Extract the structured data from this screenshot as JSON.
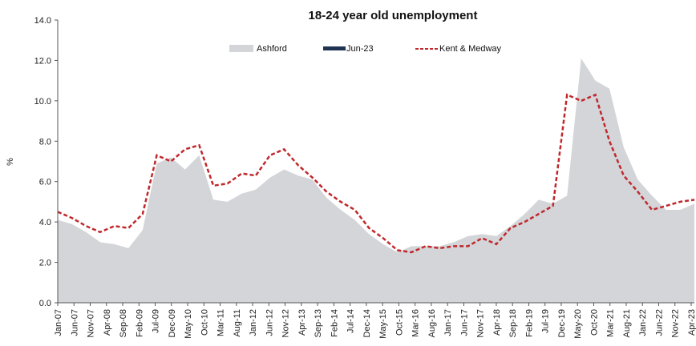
{
  "chart_data": {
    "type": "area",
    "title": "18-24 year old unemployment",
    "xlabel": "",
    "ylabel": "%",
    "ylim": [
      0,
      14
    ],
    "yticks": [
      "0.0",
      "2.0",
      "4.0",
      "6.0",
      "8.0",
      "10.0",
      "12.0",
      "14.0"
    ],
    "xticks": [
      "Jan-07",
      "Jun-07",
      "Nov-07",
      "Apr-08",
      "Sep-08",
      "Feb-09",
      "Jul-09",
      "Dec-09",
      "May-10",
      "Oct-10",
      "Mar-11",
      "Aug-11",
      "Jan-12",
      "Jun-12",
      "Nov-12",
      "Apr-13",
      "Sep-13",
      "Feb-14",
      "Jul-14",
      "Dec-14",
      "May-15",
      "Oct-15",
      "Mar-16",
      "Aug-16",
      "Jan-17",
      "Jun-17",
      "Nov-17",
      "Apr-18",
      "Sep-18",
      "Feb-19",
      "Jul-19",
      "Dec-19",
      "May-20",
      "Oct-20",
      "Mar-21",
      "Aug-21",
      "Jan-22",
      "Jun-22",
      "Nov-22",
      "Apr-23"
    ],
    "grid": false,
    "legend": "top",
    "series": [
      {
        "name": "Ashford",
        "style": "area",
        "color": "#d3d5d9",
        "values": [
          4.1,
          3.9,
          3.5,
          3.0,
          2.9,
          2.7,
          3.6,
          6.9,
          7.2,
          6.6,
          7.3,
          5.1,
          5.0,
          5.4,
          5.6,
          6.2,
          6.6,
          6.3,
          6.1,
          5.2,
          4.6,
          4.1,
          3.4,
          2.9,
          2.5,
          2.8,
          2.8,
          2.8,
          3.0,
          3.3,
          3.4,
          3.3,
          3.8,
          4.4,
          5.1,
          4.9,
          5.3,
          12.1,
          11.0,
          10.6,
          7.7,
          6.1,
          5.3,
          4.6,
          4.6,
          4.9
        ]
      },
      {
        "name": "Jun-23",
        "style": "bar",
        "color": "#1f3350",
        "values": []
      },
      {
        "name": "Kent & Medway",
        "style": "dashed-line",
        "color": "#c0282c",
        "values": [
          4.5,
          4.2,
          3.8,
          3.5,
          3.8,
          3.7,
          4.4,
          7.3,
          7.0,
          7.6,
          7.8,
          5.8,
          5.9,
          6.4,
          6.3,
          7.3,
          7.6,
          6.8,
          6.2,
          5.5,
          5.0,
          4.6,
          3.7,
          3.2,
          2.6,
          2.5,
          2.8,
          2.7,
          2.8,
          2.8,
          3.2,
          2.9,
          3.7,
          4.0,
          4.4,
          4.8,
          10.3,
          10.0,
          10.3,
          8.0,
          6.3,
          5.5,
          4.6,
          4.8,
          5.0,
          5.1
        ]
      }
    ]
  }
}
